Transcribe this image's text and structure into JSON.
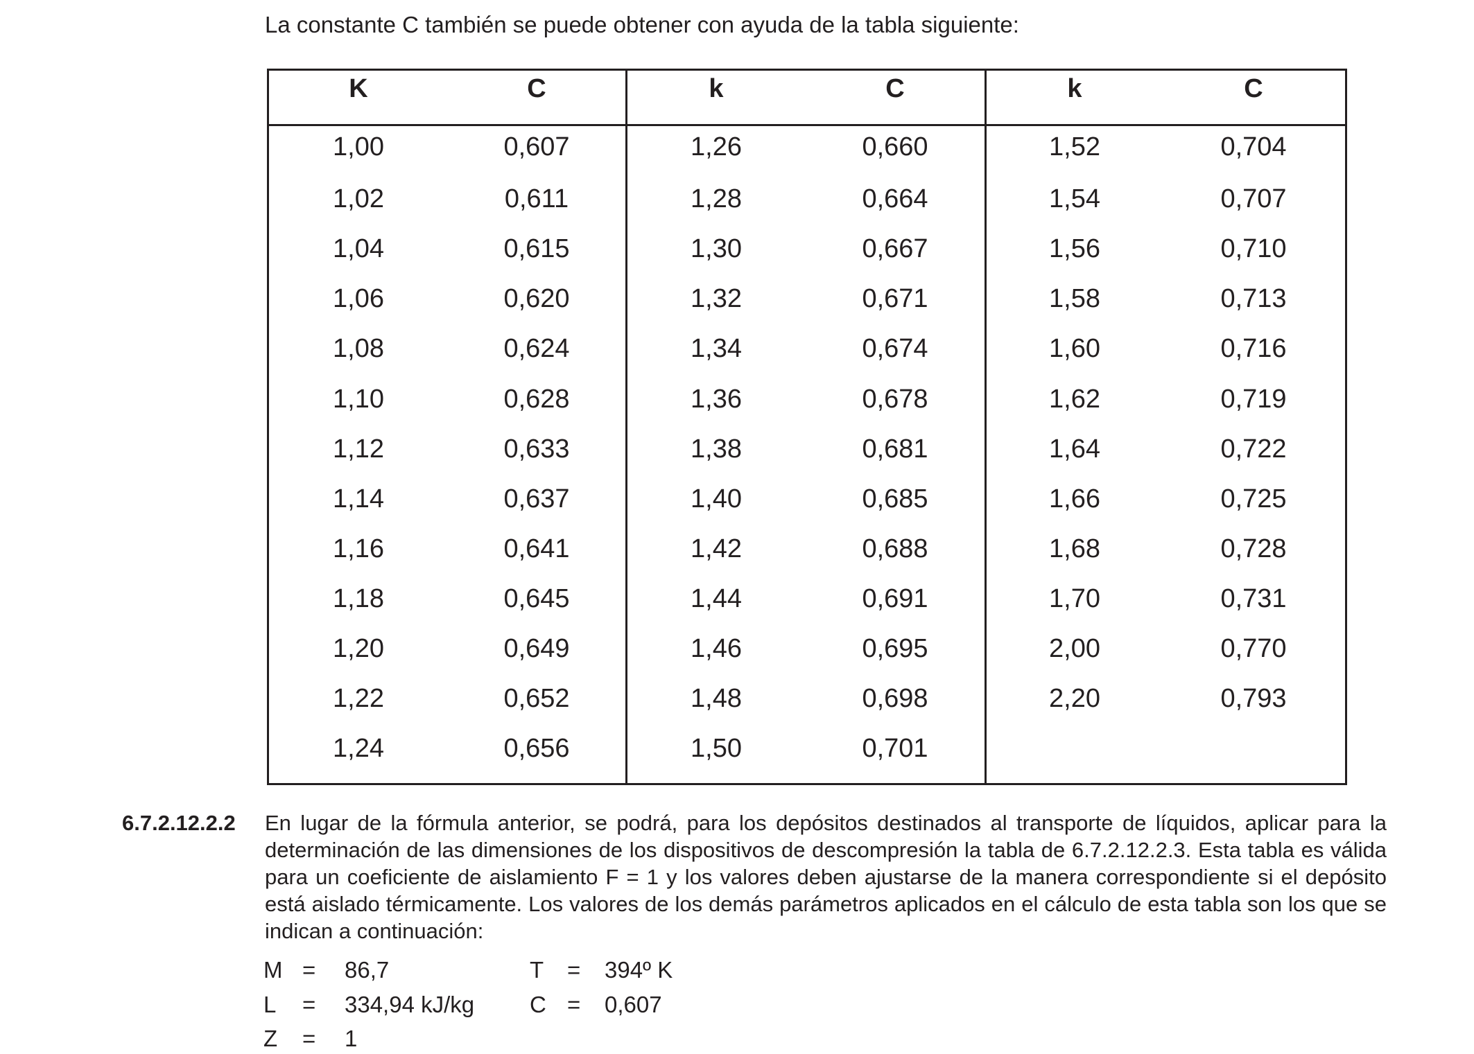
{
  "intro": "La constante C también se puede obtener con ayuda de la tabla siguiente:",
  "table": {
    "headers": [
      "K",
      "C",
      "k",
      "C",
      "k",
      "C"
    ],
    "groups": [
      {
        "rows": [
          [
            "1,00",
            "0,607"
          ],
          [
            "1,02",
            "0,611"
          ],
          [
            "1,04",
            "0,615"
          ],
          [
            "1,06",
            "0,620"
          ],
          [
            "1,08",
            "0,624"
          ],
          [
            "1,10",
            "0,628"
          ],
          [
            "1,12",
            "0,633"
          ],
          [
            "1,14",
            "0,637"
          ],
          [
            "1,16",
            "0,641"
          ],
          [
            "1,18",
            "0,645"
          ],
          [
            "1,20",
            "0,649"
          ],
          [
            "1,22",
            "0,652"
          ],
          [
            "1,24",
            "0,656"
          ]
        ]
      },
      {
        "rows": [
          [
            "1,26",
            "0,660"
          ],
          [
            "1,28",
            "0,664"
          ],
          [
            "1,30",
            "0,667"
          ],
          [
            "1,32",
            "0,671"
          ],
          [
            "1,34",
            "0,674"
          ],
          [
            "1,36",
            "0,678"
          ],
          [
            "1,38",
            "0,681"
          ],
          [
            "1,40",
            "0,685"
          ],
          [
            "1,42",
            "0,688"
          ],
          [
            "1,44",
            "0,691"
          ],
          [
            "1,46",
            "0,695"
          ],
          [
            "1,48",
            "0,698"
          ],
          [
            "1,50",
            "0,701"
          ]
        ]
      },
      {
        "rows": [
          [
            "1,52",
            "0,704"
          ],
          [
            "1,54",
            "0,707"
          ],
          [
            "1,56",
            "0,710"
          ],
          [
            "1,58",
            "0,713"
          ],
          [
            "1,60",
            "0,716"
          ],
          [
            "1,62",
            "0,719"
          ],
          [
            "1,64",
            "0,722"
          ],
          [
            "1,66",
            "0,725"
          ],
          [
            "1,68",
            "0,728"
          ],
          [
            "1,70",
            "0,731"
          ],
          [
            "2,00",
            "0,770"
          ],
          [
            "2,20",
            "0,793"
          ]
        ]
      }
    ]
  },
  "section": {
    "number": "6.7.2.12.2.2",
    "text": "En lugar de la fórmula anterior, se podrá, para los depósitos destinados al transporte de líquidos, aplicar para la determinación de las dimensiones de los dispositivos de descompresión la tabla de 6.7.2.12.2.3. Esta tabla es válida para un coeficiente de aislamiento F = 1 y los valores deben ajustarse de la manera correspondiente si el depósito está aislado térmicamente. Los valores de los demás parámetros aplicados en el cálculo de esta tabla son los que se indican a continuación:"
  },
  "params": {
    "M": {
      "symbol": "M",
      "eq": "=",
      "value": "86,7"
    },
    "T": {
      "symbol": "T",
      "eq": "=",
      "value": "394º K"
    },
    "L": {
      "symbol": "L",
      "eq": "=",
      "value": "334,94 kJ/kg"
    },
    "C": {
      "symbol": "C",
      "eq": "=",
      "value": "0,607"
    },
    "Z": {
      "symbol": "Z",
      "eq": "=",
      "value": "1"
    }
  }
}
